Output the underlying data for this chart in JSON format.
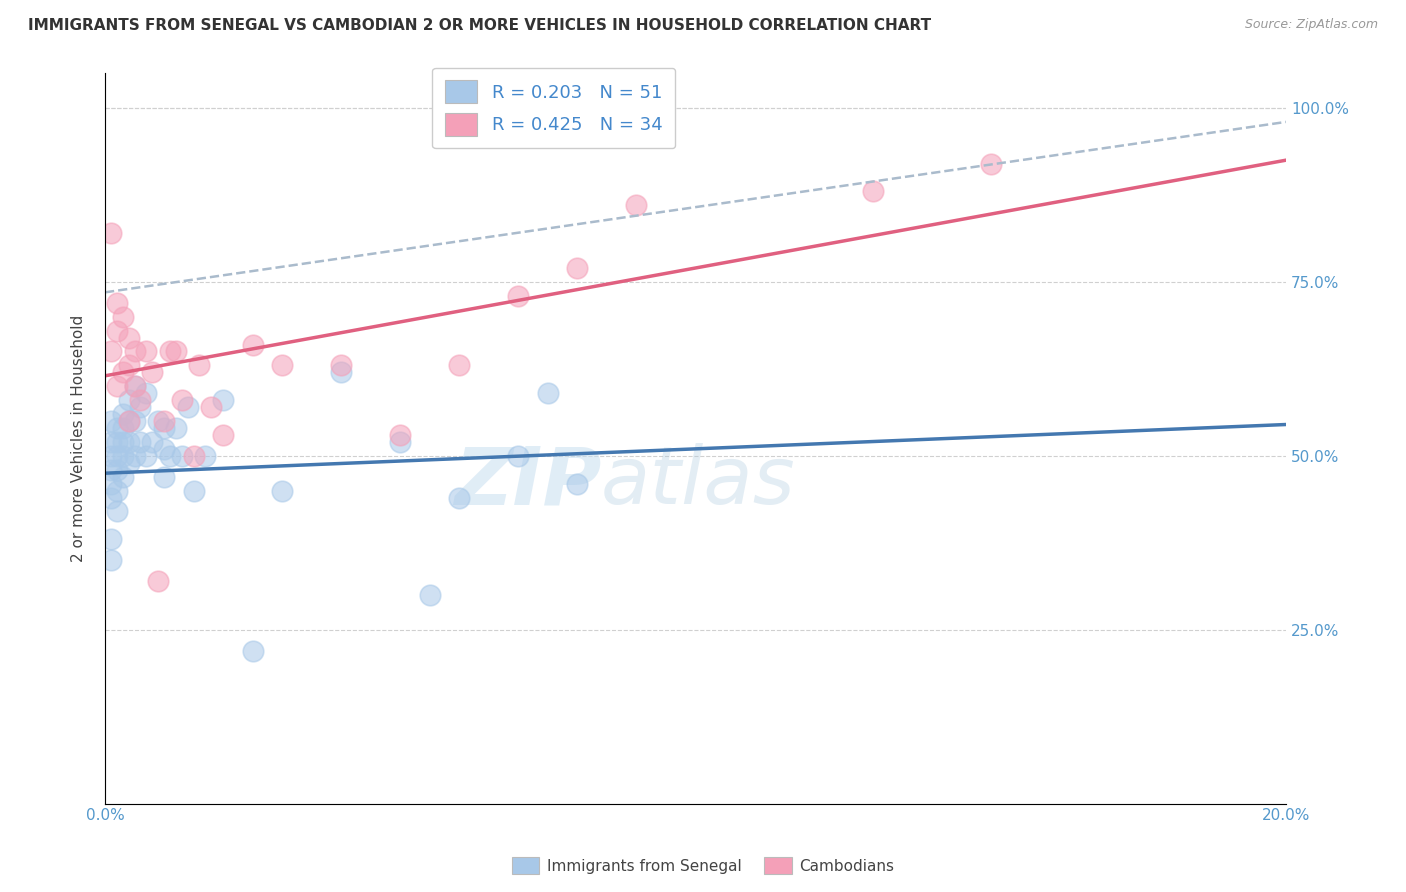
{
  "title": "IMMIGRANTS FROM SENEGAL VS CAMBODIAN 2 OR MORE VEHICLES IN HOUSEHOLD CORRELATION CHART",
  "source": "Source: ZipAtlas.com",
  "ylabel_label": "2 or more Vehicles in Household",
  "x_min": 0.0,
  "x_max": 0.2,
  "y_min": 0.0,
  "y_max": 1.05,
  "x_tick_positions": [
    0.0,
    0.04,
    0.08,
    0.12,
    0.16,
    0.2
  ],
  "x_tick_labels": [
    "0.0%",
    "",
    "",
    "",
    "",
    "20.0%"
  ],
  "y_tick_positions": [
    0.0,
    0.25,
    0.5,
    0.75,
    1.0
  ],
  "y_tick_labels": [
    "",
    "25.0%",
    "50.0%",
    "75.0%",
    "100.0%"
  ],
  "senegal_color": "#a8c8e8",
  "cambodian_color": "#f4a0b8",
  "senegal_line_color": "#4478b0",
  "cambodian_line_color": "#e06080",
  "dashed_color": "#aabbcc",
  "R_senegal": 0.203,
  "N_senegal": 51,
  "R_cambodian": 0.425,
  "N_cambodian": 34,
  "legend_label_1": "Immigrants from Senegal",
  "legend_label_2": "Cambodians",
  "senegal_x": [
    0.001,
    0.001,
    0.001,
    0.001,
    0.001,
    0.001,
    0.001,
    0.001,
    0.002,
    0.002,
    0.002,
    0.002,
    0.002,
    0.002,
    0.003,
    0.003,
    0.003,
    0.003,
    0.003,
    0.004,
    0.004,
    0.004,
    0.004,
    0.005,
    0.005,
    0.005,
    0.006,
    0.006,
    0.007,
    0.007,
    0.008,
    0.009,
    0.01,
    0.01,
    0.01,
    0.011,
    0.012,
    0.013,
    0.014,
    0.015,
    0.017,
    0.02,
    0.025,
    0.03,
    0.04,
    0.05,
    0.055,
    0.06,
    0.07,
    0.075,
    0.08
  ],
  "senegal_y": [
    0.5,
    0.52,
    0.55,
    0.48,
    0.46,
    0.44,
    0.38,
    0.35,
    0.54,
    0.52,
    0.5,
    0.48,
    0.45,
    0.42,
    0.56,
    0.54,
    0.52,
    0.5,
    0.47,
    0.58,
    0.55,
    0.52,
    0.49,
    0.6,
    0.55,
    0.5,
    0.57,
    0.52,
    0.59,
    0.5,
    0.52,
    0.55,
    0.54,
    0.51,
    0.47,
    0.5,
    0.54,
    0.5,
    0.57,
    0.45,
    0.5,
    0.58,
    0.22,
    0.45,
    0.62,
    0.52,
    0.3,
    0.44,
    0.5,
    0.59,
    0.46
  ],
  "cambodian_x": [
    0.001,
    0.001,
    0.002,
    0.002,
    0.002,
    0.003,
    0.003,
    0.004,
    0.004,
    0.004,
    0.005,
    0.005,
    0.006,
    0.007,
    0.008,
    0.009,
    0.01,
    0.011,
    0.012,
    0.013,
    0.015,
    0.016,
    0.018,
    0.02,
    0.025,
    0.03,
    0.04,
    0.05,
    0.06,
    0.07,
    0.08,
    0.09,
    0.13,
    0.15
  ],
  "cambodian_y": [
    0.82,
    0.65,
    0.72,
    0.68,
    0.6,
    0.7,
    0.62,
    0.67,
    0.63,
    0.55,
    0.65,
    0.6,
    0.58,
    0.65,
    0.62,
    0.32,
    0.55,
    0.65,
    0.65,
    0.58,
    0.5,
    0.63,
    0.57,
    0.53,
    0.66,
    0.63,
    0.63,
    0.53,
    0.63,
    0.73,
    0.77,
    0.86,
    0.88,
    0.92
  ]
}
